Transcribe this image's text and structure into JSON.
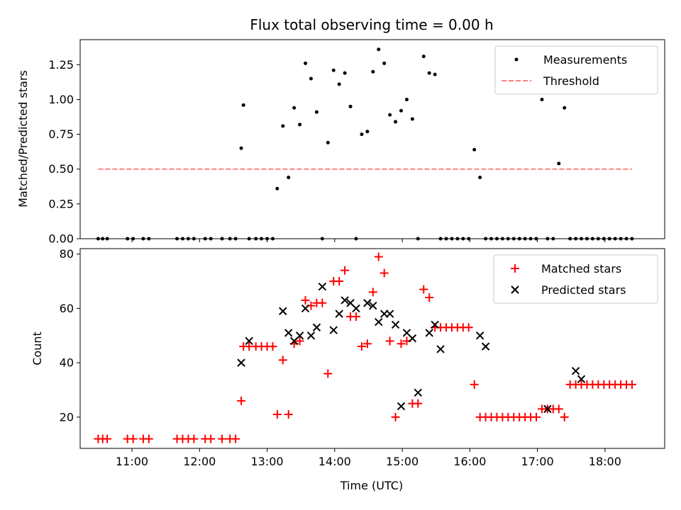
{
  "chart_data": [
    {
      "type": "scatter",
      "title": "Flux total observing time = 0.00 h",
      "xlabel": "",
      "ylabel": "Matched/Predicted stars",
      "xlim": [
        "10:14",
        "18:53"
      ],
      "ylim": [
        0,
        1.43
      ],
      "yticks": [
        0.0,
        0.25,
        0.5,
        0.75,
        1.0,
        1.25
      ],
      "ytick_labels": [
        "0.00",
        "0.25",
        "0.50",
        "0.75",
        "1.00",
        "1.25"
      ],
      "xticks": [
        "11:00",
        "12:00",
        "13:00",
        "14:00",
        "15:00",
        "16:00",
        "17:00",
        "18:00"
      ],
      "legend_position": "top-right",
      "series": [
        {
          "name": "Measurements",
          "type": "scatter",
          "color": "#000000",
          "x": [
            "10:30",
            "10:34",
            "10:38",
            "10:56",
            "11:01",
            "11:10",
            "11:15",
            "11:40",
            "11:45",
            "11:50",
            "11:55",
            "12:05",
            "12:10",
            "12:20",
            "12:27",
            "12:32",
            "12:37",
            "12:39",
            "12:44",
            "12:50",
            "12:55",
            "13:00",
            "13:05",
            "13:09",
            "13:14",
            "13:19",
            "13:24",
            "13:29",
            "13:34",
            "13:39",
            "13:44",
            "13:49",
            "13:54",
            "13:59",
            "14:04",
            "14:09",
            "14:14",
            "14:19",
            "14:24",
            "14:29",
            "14:34",
            "14:39",
            "14:44",
            "14:49",
            "14:54",
            "14:59",
            "15:04",
            "15:09",
            "15:14",
            "15:19",
            "15:24",
            "15:29",
            "15:34",
            "15:39",
            "15:44",
            "15:49",
            "15:54",
            "15:59",
            "16:04",
            "16:09",
            "16:14",
            "16:19",
            "16:24",
            "16:29",
            "16:34",
            "16:39",
            "16:44",
            "16:49",
            "16:54",
            "16:59",
            "17:04",
            "17:09",
            "17:14",
            "17:19",
            "17:24",
            "17:29",
            "17:34",
            "17:39",
            "17:44",
            "17:49",
            "17:54",
            "17:59",
            "18:04",
            "18:09",
            "18:14",
            "18:19",
            "18:24"
          ],
          "y": [
            0,
            0,
            0,
            0,
            0,
            0,
            0,
            0,
            0,
            0,
            0,
            0,
            0,
            0,
            0,
            0,
            0.65,
            0.96,
            0,
            0,
            0,
            0,
            0,
            0.36,
            0.81,
            0.44,
            0.94,
            0.82,
            1.26,
            1.15,
            0.91,
            0,
            0.69,
            1.21,
            1.11,
            1.19,
            0.95,
            0,
            0.75,
            0.77,
            1.2,
            1.36,
            1.26,
            0.89,
            0.84,
            0.92,
            1.0,
            0.86,
            0,
            1.31,
            1.19,
            1.18,
            0,
            0,
            0,
            0,
            0,
            0,
            0.64,
            0.44,
            0,
            0,
            0,
            0,
            0,
            0,
            0,
            0,
            0,
            0,
            1.0,
            0,
            0,
            0.54,
            0.94,
            0,
            0,
            0,
            0,
            0,
            0,
            0,
            0,
            0,
            0,
            0,
            0
          ]
        },
        {
          "name": "Threshold",
          "type": "line",
          "style": "dashed",
          "color": "#ff8080",
          "x": [
            "10:30",
            "18:24"
          ],
          "y": [
            0.5,
            0.5
          ]
        }
      ]
    },
    {
      "type": "scatter",
      "title": "",
      "xlabel": "Time (UTC)",
      "ylabel": "Count",
      "xlim": [
        "10:14",
        "18:53"
      ],
      "ylim": [
        8.5,
        82
      ],
      "yticks": [
        20,
        40,
        60,
        80
      ],
      "ytick_labels": [
        "20",
        "40",
        "60",
        "80"
      ],
      "xticks": [
        "11:00",
        "12:00",
        "13:00",
        "14:00",
        "15:00",
        "16:00",
        "17:00",
        "18:00"
      ],
      "legend_position": "top-right",
      "series": [
        {
          "name": "Matched stars",
          "marker": "plus",
          "color": "#ff0000",
          "x": [
            "10:30",
            "10:34",
            "10:38",
            "10:56",
            "11:01",
            "11:10",
            "11:15",
            "11:40",
            "11:45",
            "11:50",
            "11:55",
            "12:05",
            "12:10",
            "12:20",
            "12:27",
            "12:32",
            "12:37",
            "12:39",
            "12:44",
            "12:50",
            "12:55",
            "13:00",
            "13:05",
            "13:09",
            "13:14",
            "13:19",
            "13:24",
            "13:29",
            "13:34",
            "13:39",
            "13:44",
            "13:49",
            "13:54",
            "13:59",
            "14:04",
            "14:09",
            "14:14",
            "14:19",
            "14:24",
            "14:29",
            "14:34",
            "14:39",
            "14:44",
            "14:49",
            "14:54",
            "14:59",
            "15:04",
            "15:09",
            "15:14",
            "15:19",
            "15:24",
            "15:29",
            "15:34",
            "15:39",
            "15:44",
            "15:49",
            "15:54",
            "15:59",
            "16:04",
            "16:09",
            "16:14",
            "16:19",
            "16:24",
            "16:29",
            "16:34",
            "16:39",
            "16:44",
            "16:49",
            "16:54",
            "16:59",
            "17:04",
            "17:09",
            "17:14",
            "17:19",
            "17:24",
            "17:29",
            "17:34",
            "17:39",
            "17:44",
            "17:49",
            "17:54",
            "17:59",
            "18:04",
            "18:09",
            "18:14",
            "18:19",
            "18:24"
          ],
          "y": [
            12,
            12,
            12,
            12,
            12,
            12,
            12,
            12,
            12,
            12,
            12,
            12,
            12,
            12,
            12,
            12,
            26,
            46,
            46,
            46,
            46,
            46,
            46,
            21,
            41,
            21,
            47,
            48,
            63,
            61,
            62,
            62,
            36,
            70,
            70,
            74,
            57,
            57,
            46,
            47,
            66,
            79,
            73,
            48,
            20,
            47,
            48,
            25,
            25,
            67,
            64,
            53,
            53,
            53,
            53,
            53,
            53,
            53,
            32,
            20,
            20,
            20,
            20,
            20,
            20,
            20,
            20,
            20,
            20,
            20,
            23,
            23,
            23,
            23,
            20,
            32,
            32,
            32,
            32,
            32,
            32,
            32,
            32,
            32,
            32,
            32,
            32
          ]
        },
        {
          "name": "Predicted stars",
          "marker": "x",
          "color": "#000000",
          "x": [
            "12:37",
            "12:44",
            "13:14",
            "13:19",
            "13:24",
            "13:29",
            "13:34",
            "13:39",
            "13:44",
            "13:49",
            "13:59",
            "14:04",
            "14:09",
            "14:14",
            "14:19",
            "14:29",
            "14:34",
            "14:39",
            "14:44",
            "14:49",
            "14:54",
            "14:59",
            "15:04",
            "15:09",
            "15:14",
            "15:24",
            "15:29",
            "15:34",
            "16:09",
            "16:14",
            "17:09",
            "17:34",
            "17:39"
          ],
          "y": [
            40,
            48,
            59,
            51,
            48,
            50,
            60,
            50,
            53,
            68,
            52,
            58,
            63,
            62,
            60,
            62,
            61,
            55,
            58,
            58,
            54,
            24,
            51,
            49,
            29,
            51,
            54,
            45,
            50,
            46,
            23,
            37,
            34
          ]
        }
      ]
    }
  ]
}
